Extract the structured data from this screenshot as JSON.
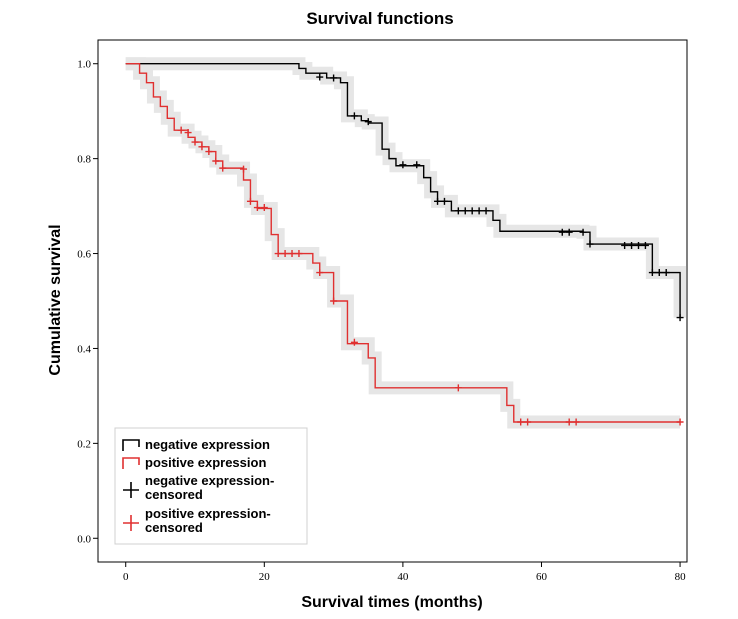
{
  "chart_data": {
    "type": "line",
    "title": "Survival functions",
    "xlabel": "Survival times (months)",
    "ylabel": "Cumulative survival",
    "xlim": [
      -4,
      81
    ],
    "ylim": [
      -0.05,
      1.05
    ],
    "x_ticks": [
      0,
      20,
      40,
      60,
      80
    ],
    "y_ticks": [
      0.0,
      0.2,
      0.4,
      0.6,
      0.8,
      1.0
    ],
    "x_tick_labels": [
      "0",
      "20",
      "40",
      "60",
      "80"
    ],
    "y_tick_labels": [
      "0.0",
      "0.2",
      "0.4",
      "0.6",
      "0.8",
      "1.0"
    ],
    "grid": false,
    "legend_position": "bottom-left",
    "legend": [
      {
        "label": "negative expression",
        "kind": "step",
        "color": "#000000"
      },
      {
        "label": "positive expression",
        "kind": "step",
        "color": "#e03030"
      },
      {
        "label": "negative expression-censored",
        "kind": "censor",
        "color": "#000000"
      },
      {
        "label": "positive expression-censored",
        "kind": "censor",
        "color": "#e03030"
      }
    ],
    "series": [
      {
        "name": "negative expression",
        "color": "#000000",
        "steps": [
          [
            0,
            1.0
          ],
          [
            25,
            0.99
          ],
          [
            26,
            0.98
          ],
          [
            29,
            0.97
          ],
          [
            31,
            0.96
          ],
          [
            32,
            0.89
          ],
          [
            34,
            0.88
          ],
          [
            35,
            0.875
          ],
          [
            37,
            0.82
          ],
          [
            38,
            0.8
          ],
          [
            39,
            0.785
          ],
          [
            43,
            0.76
          ],
          [
            44,
            0.73
          ],
          [
            45,
            0.71
          ],
          [
            47,
            0.69
          ],
          [
            53,
            0.67
          ],
          [
            54,
            0.647
          ],
          [
            66,
            0.645
          ],
          [
            67,
            0.62
          ],
          [
            76,
            0.56
          ],
          [
            80,
            0.465
          ]
        ],
        "censored": [
          [
            28,
            0.972
          ],
          [
            30,
            0.97
          ],
          [
            33,
            0.89
          ],
          [
            35,
            0.878
          ],
          [
            40,
            0.787
          ],
          [
            42,
            0.787
          ],
          [
            45,
            0.71
          ],
          [
            46,
            0.71
          ],
          [
            48,
            0.69
          ],
          [
            49,
            0.69
          ],
          [
            50,
            0.69
          ],
          [
            51,
            0.69
          ],
          [
            52,
            0.69
          ],
          [
            63,
            0.645
          ],
          [
            64,
            0.645
          ],
          [
            66,
            0.645
          ],
          [
            67,
            0.62
          ],
          [
            72,
            0.617
          ],
          [
            73,
            0.617
          ],
          [
            74,
            0.617
          ],
          [
            75,
            0.617
          ],
          [
            76,
            0.56
          ],
          [
            77,
            0.56
          ],
          [
            78,
            0.56
          ],
          [
            80,
            0.465
          ]
        ]
      },
      {
        "name": "positive expression",
        "color": "#e03030",
        "steps": [
          [
            0,
            1.0
          ],
          [
            2,
            0.98
          ],
          [
            3,
            0.96
          ],
          [
            4,
            0.93
          ],
          [
            5,
            0.91
          ],
          [
            6,
            0.885
          ],
          [
            7,
            0.86
          ],
          [
            9,
            0.845
          ],
          [
            10,
            0.835
          ],
          [
            11,
            0.825
          ],
          [
            12,
            0.815
          ],
          [
            13,
            0.795
          ],
          [
            14,
            0.78
          ],
          [
            17,
            0.755
          ],
          [
            18,
            0.71
          ],
          [
            19,
            0.695
          ],
          [
            21,
            0.64
          ],
          [
            22,
            0.6
          ],
          [
            27,
            0.58
          ],
          [
            28,
            0.56
          ],
          [
            30,
            0.5
          ],
          [
            32,
            0.41
          ],
          [
            35,
            0.38
          ],
          [
            36,
            0.317
          ],
          [
            55,
            0.28
          ],
          [
            56,
            0.245
          ]
        ],
        "censored": [
          [
            8,
            0.86
          ],
          [
            9,
            0.855
          ],
          [
            10,
            0.835
          ],
          [
            11,
            0.825
          ],
          [
            12,
            0.815
          ],
          [
            13,
            0.795
          ],
          [
            14,
            0.78
          ],
          [
            17,
            0.778
          ],
          [
            18,
            0.71
          ],
          [
            19,
            0.697
          ],
          [
            20,
            0.697
          ],
          [
            22,
            0.6
          ],
          [
            23,
            0.6
          ],
          [
            24,
            0.6
          ],
          [
            25,
            0.6
          ],
          [
            28,
            0.56
          ],
          [
            30,
            0.5
          ],
          [
            33,
            0.413
          ],
          [
            48,
            0.317
          ],
          [
            57,
            0.245
          ],
          [
            58,
            0.245
          ],
          [
            64,
            0.245
          ],
          [
            65,
            0.245
          ],
          [
            80,
            0.245
          ]
        ]
      }
    ]
  }
}
